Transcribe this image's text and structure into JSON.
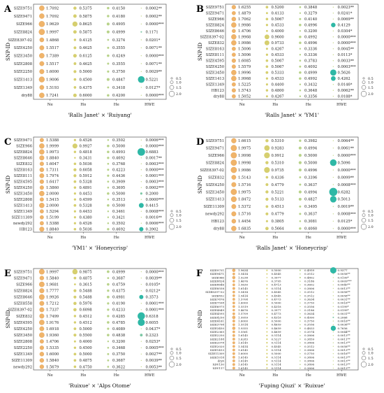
{
  "figure": {
    "ylabel": "SNP-ID",
    "x_categories": [
      "Ne",
      "Ho",
      "He",
      "HWE"
    ],
    "size_legend": [
      "0.5",
      "1.0",
      "1.5",
      "2.0"
    ]
  },
  "chart_data": [
    {
      "type": "table",
      "panel": "A",
      "title": "'Ralls Janet' × 'Ruiyang'",
      "rows": [
        {
          "id": "SIZE9751",
          "ne": "1.7092",
          "ho": "0.5375",
          "he": "0.4150",
          "hwe": "0.0002**"
        },
        {
          "id": "SIZE9471",
          "ne": "1.7092",
          "ho": "0.5875",
          "he": "0.4180",
          "hwe": "0.0002**"
        },
        {
          "id": "SIZE966",
          "ne": "1.9629",
          "ho": "0.8625",
          "he": "0.4905",
          "hwe": "0.0000***"
        },
        {
          "id": "SIZE8824",
          "ne": "1.9997",
          "ho": "0.5875",
          "he": "0.4999",
          "hwe": "0.1171"
        },
        {
          "id": "SIZE8397-02",
          "ne": "1.4868",
          "ho": "0.4125",
          "he": "0.3274",
          "hwe": "0.0201*"
        },
        {
          "id": "SIZE4250",
          "ne": "1.5517",
          "ho": "0.4625",
          "he": "0.3555",
          "hwe": "0.0071**"
        },
        {
          "id": "SIZE3450",
          "ne": "1.7389",
          "ho": "0.6125",
          "he": "0.4249",
          "hwe": "0.0000***"
        },
        {
          "id": "SIZE2808",
          "ne": "1.5517",
          "ho": "0.4625",
          "he": "0.3555",
          "hwe": "0.0071**"
        },
        {
          "id": "SIZE2250",
          "ne": "1.6000",
          "ho": "0.5000",
          "he": "0.3750",
          "hwe": "0.0029**"
        },
        {
          "id": "SIZE1413",
          "ne": "1.9006",
          "ho": "0.4500",
          "he": "0.4847",
          "hwe": "0.5221"
        },
        {
          "id": "SIZE1349",
          "ne": "1.5193",
          "ho": "0.4375",
          "he": "0.3418",
          "hwe": "0.0127*"
        },
        {
          "id": "dry88",
          "ne": "1.7241",
          "ho": "0.6000",
          "he": "0.4200",
          "hwe": "0.0000***"
        }
      ]
    },
    {
      "type": "table",
      "panel": "B",
      "title": "'Ralls Janet' × 'YM1'",
      "rows": [
        {
          "id": "SIZE9751",
          "ne": "1.6255",
          "ho": "0.5200",
          "he": "0.3848",
          "hwe": "0.0023**"
        },
        {
          "id": "SIZE9471",
          "ne": "1.4879",
          "ho": "0.4133",
          "he": "0.3279",
          "hwe": "0.0241*"
        },
        {
          "id": "SIZE966",
          "ne": "1.7062",
          "ho": "0.5067",
          "he": "0.4140",
          "hwe": "0.0069**"
        },
        {
          "id": "SIZE8824",
          "ne": "1.9986",
          "ho": "0.4533",
          "he": "0.4996",
          "hwe": "0.4129"
        },
        {
          "id": "SIZE8646",
          "ne": "1.4706",
          "ho": "0.4000",
          "he": "0.3200",
          "hwe": "0.0304*"
        },
        {
          "id": "SIZE8397-02",
          "ne": "1.9968",
          "ho": "0.9600",
          "he": "0.4992",
          "hwe": "0.0000***"
        },
        {
          "id": "SIZE832",
          "ne": "1.9986",
          "ho": "0.9733",
          "he": "0.4996",
          "hwe": "0.0000***"
        },
        {
          "id": "SIZE8163",
          "ne": "1.5006",
          "ho": "0.4267",
          "he": "0.3336",
          "hwe": "0.0045**"
        },
        {
          "id": "SIZE8111",
          "ne": "1.5006",
          "ho": "0.4533",
          "he": "0.3336",
          "hwe": "0.0113*"
        },
        {
          "id": "SIZE4595",
          "ne": "1.6085",
          "ho": "0.5067",
          "he": "0.3783",
          "hwe": "0.0033**"
        },
        {
          "id": "SIZE4250",
          "ne": "1.5579",
          "ho": "0.5067",
          "he": "0.4092",
          "hwe": "0.0003***"
        },
        {
          "id": "SIZE3450",
          "ne": "1.9996",
          "ho": "0.5333",
          "he": "0.4999",
          "hwe": "0.5626"
        },
        {
          "id": "SIZE1413",
          "ne": "1.9968",
          "ho": "0.4533",
          "he": "0.4992",
          "hwe": "0.4262"
        },
        {
          "id": "SIZE1349",
          "ne": "1.5225",
          "ho": "0.4400",
          "he": "0.3432",
          "hwe": "0.0146*"
        },
        {
          "id": "HB123",
          "ne": "1.5743",
          "ho": "0.4800",
          "he": "0.3648",
          "hwe": "0.0062**"
        },
        {
          "id": "dry88",
          "ne": "1.5052",
          "ho": "0.4267",
          "he": "0.3356",
          "hwe": "0.0188*"
        }
      ]
    },
    {
      "type": "table",
      "panel": "C",
      "title": "'YM1' × 'Honeycrisp'",
      "rows": [
        {
          "id": "SIZE9471",
          "ne": "1.5388",
          "ho": "0.4526",
          "he": "0.3502",
          "hwe": "0.0006***"
        },
        {
          "id": "SIZE966",
          "ne": "1.9999",
          "ho": "0.9927",
          "he": "0.5000",
          "hwe": "0.0000***"
        },
        {
          "id": "SIZE8824",
          "ne": "1.9973",
          "ho": "0.4818",
          "he": "0.4993",
          "hwe": "0.6883"
        },
        {
          "id": "SIZE8646",
          "ne": "1.8840",
          "ho": "0.3431",
          "he": "0.4692",
          "hwe": "0.0017**"
        },
        {
          "id": "SIZE832",
          "ne": "1.6047",
          "ho": "0.5036",
          "he": "0.3768",
          "hwe": "0.0003***"
        },
        {
          "id": "SIZE8163",
          "ne": "1.7311",
          "ho": "0.6058",
          "he": "0.4223",
          "hwe": "0.0000***"
        },
        {
          "id": "SIZE8111",
          "ne": "1.7974",
          "ho": "0.5912",
          "he": "0.4436",
          "hwe": "0.0001***"
        },
        {
          "id": "SIZE4595",
          "ne": "1.6417",
          "ho": "0.5328",
          "he": "0.3909",
          "hwe": "0.0003***"
        },
        {
          "id": "SIZE4250",
          "ne": "1.5860",
          "ho": "0.4891",
          "he": "0.3695",
          "hwe": "0.0002***"
        },
        {
          "id": "SIZE3450",
          "ne": "2.0000",
          "ho": "0.4453",
          "he": "0.5000",
          "hwe": "0.2000"
        },
        {
          "id": "SIZE2808",
          "ne": "1.5415",
          "ho": "0.4599",
          "he": "0.3513",
          "hwe": "0.0000***"
        },
        {
          "id": "SIZE1413",
          "ne": "2.0000",
          "ho": "0.5328",
          "he": "0.5000",
          "hwe": "0.4415"
        },
        {
          "id": "SIZE1349",
          "ne": "1.5294",
          "ho": "0.4453",
          "he": "0.3461",
          "hwe": "0.0008***"
        },
        {
          "id": "SIZE11309",
          "ne": "1.5199",
          "ho": "0.4380",
          "he": "0.3421",
          "hwe": "0.0016**"
        },
        {
          "id": "newdy292",
          "ne": "1.5388",
          "ho": "0.4526",
          "he": "0.3502",
          "hwe": "0.0006***"
        },
        {
          "id": "HB123",
          "ne": "1.8840",
          "ho": "0.5036",
          "he": "0.4692",
          "hwe": "0.3902"
        }
      ]
    },
    {
      "type": "table",
      "panel": "D",
      "title": "'Ralls Janet' × 'Honeycrisp'",
      "rows": [
        {
          "id": "SIZE9751",
          "ne": "1.6615",
          "ho": "0.5310",
          "he": "0.3982",
          "hwe": "0.0064**"
        },
        {
          "id": "SIZE9471",
          "ne": "1.9975",
          "ho": "0.9283",
          "he": "0.4994",
          "hwe": "0.0061**"
        },
        {
          "id": "SIZE966",
          "ne": "1.9998",
          "ho": "0.9912",
          "he": "0.5000",
          "hwe": "0.0000***"
        },
        {
          "id": "SIZE8824",
          "ne": "1.9998",
          "ho": "0.5310",
          "he": "0.5000",
          "hwe": "0.5096"
        },
        {
          "id": "SIZE8397-02",
          "ne": "1.9986",
          "ho": "0.9735",
          "he": "0.4996",
          "hwe": "0.0000***"
        },
        {
          "id": "SIZE832",
          "ne": "1.5143",
          "ho": "0.4336",
          "he": "0.3396",
          "hwe": "0.0099**"
        },
        {
          "id": "SIZE4250",
          "ne": "1.5716",
          "ho": "0.4779",
          "he": "0.3637",
          "hwe": "0.0008***"
        },
        {
          "id": "SIZE3450",
          "ne": "1.9975",
          "ho": "0.5221",
          "he": "0.4994",
          "hwe": "0.6282"
        },
        {
          "id": "SIZE1413",
          "ne": "1.8472",
          "ho": "0.5133",
          "he": "0.4827",
          "hwe": "0.5013"
        },
        {
          "id": "SIZE11309",
          "ne": "1.5372",
          "ho": "0.4513",
          "he": "0.3495",
          "hwe": "0.0019**"
        },
        {
          "id": "newdy292",
          "ne": "1.5716",
          "ho": "0.4779",
          "he": "0.3637",
          "hwe": "0.0008***"
        },
        {
          "id": "HB123",
          "ne": "1.4454",
          "ho": "0.3805",
          "he": "0.3081",
          "hwe": "0.0125*"
        },
        {
          "id": "dry88",
          "ne": "1.6835",
          "ho": "0.5664",
          "he": "0.4060",
          "hwe": "0.0000***"
        }
      ]
    },
    {
      "type": "table",
      "panel": "E",
      "title": "'Ruixue' × 'Alps Otome'",
      "rows": [
        {
          "id": "SIZE9751",
          "ne": "1.9997",
          "ho": "0.9875",
          "he": "0.4999",
          "hwe": "0.0000***"
        },
        {
          "id": "SIZE9471",
          "ne": "1.5840",
          "ho": "0.4875",
          "he": "0.3687",
          "hwe": "0.0039**"
        },
        {
          "id": "SIZE966",
          "ne": "1.9681",
          "ho": "0.3615",
          "he": "0.4759",
          "hwe": "0.0105*"
        },
        {
          "id": "SIZE8824",
          "ne": "1.7777",
          "ho": "0.5488",
          "he": "0.4375",
          "hwe": "0.0212*"
        },
        {
          "id": "SIZE8646",
          "ne": "1.9926",
          "ho": "0.5488",
          "he": "0.4981",
          "hwe": "0.3573"
        },
        {
          "id": "SIZE8558",
          "ne": "1.7212",
          "ho": "0.5976",
          "he": "0.4190",
          "hwe": "0.0001***"
        },
        {
          "id": "SIZE8397-02",
          "ne": "1.7337",
          "ho": "0.6098",
          "he": "0.4233",
          "hwe": "0.0001***"
        },
        {
          "id": "SIZE832",
          "ne": "1.7499",
          "ho": "0.4512",
          "he": "0.4285",
          "hwe": "0.6318"
        },
        {
          "id": "SIZE4595",
          "ne": "1.9176",
          "ho": "0.4512",
          "he": "0.4785",
          "hwe": "0.6055"
        },
        {
          "id": "SIZE4250",
          "ne": "1.6918",
          "ho": "0.5000",
          "he": "0.4089",
          "hwe": "0.0437*"
        },
        {
          "id": "SIZE3450",
          "ne": "1.9360",
          "ho": "0.5500",
          "he": "0.4838",
          "hwe": "0.2323"
        },
        {
          "id": "SIZE2808",
          "ne": "1.4706",
          "ho": "0.4000",
          "he": "0.3200",
          "hwe": "0.0253*"
        },
        {
          "id": "SIZE2250",
          "ne": "1.5335",
          "ho": "0.4500",
          "he": "0.3468",
          "hwe": "0.0005***"
        },
        {
          "id": "SIZE1349",
          "ne": "1.6000",
          "ho": "0.5000",
          "he": "0.3750",
          "hwe": "0.0027**"
        },
        {
          "id": "SIZE11309",
          "ne": "1.5840",
          "ho": "0.4875",
          "he": "0.3687",
          "hwe": "0.0039**"
        },
        {
          "id": "newdy292",
          "ne": "1.5679",
          "ho": "0.4750",
          "he": "0.3622",
          "hwe": "0.0053**"
        }
      ]
    },
    {
      "type": "table",
      "panel": "F",
      "title": "'Fuping Qiuzi' × 'Ruixue'",
      "rows": [
        {
          "id": "SIZE9751",
          "ne": "1.9634",
          "ho": "0.5000",
          "he": "0.4959",
          "hwe": "0.9377"
        },
        {
          "id": "SIZE9471",
          "ne": "1.5414",
          "ho": "0.4545",
          "he": "0.3512",
          "hwe": "0.0058**"
        },
        {
          "id": "SIZE966",
          "ne": "1.9238",
          "ho": "0.3977",
          "he": "0.4802",
          "hwe": "0.0199*"
        },
        {
          "id": "SIZE8824",
          "ne": "1.4676",
          "ho": "0.3795",
          "he": "0.3186",
          "hwe": "0.0009***"
        },
        {
          "id": "SIZE8646",
          "ne": "1.5630",
          "ho": "0.4713",
          "he": "0.3602",
          "hwe": "0.0040**"
        },
        {
          "id": "SIZE8558",
          "ne": "1.6145",
          "ho": "0.5114",
          "he": "0.3806",
          "hwe": "0.0013**"
        },
        {
          "id": "SIZE8397-02",
          "ne": "1.5414",
          "ho": "0.4545",
          "he": "0.3512",
          "hwe": "0.0058**"
        },
        {
          "id": "SIZE832",
          "ne": "1.5414",
          "ho": "0.4545",
          "he": "0.3512",
          "hwe": "0.0058**"
        },
        {
          "id": "SIZE7876",
          "ne": "1.5708",
          "ho": "0.4773",
          "he": "0.3634",
          "hwe": "0.0031**"
        },
        {
          "id": "SIZE7598",
          "ne": "1.6000",
          "ho": "0.5000",
          "he": "0.3750",
          "hwe": "0.0016**"
        },
        {
          "id": "SIZE6975",
          "ne": "1.5519",
          "ho": "0.4318",
          "he": "0.3556",
          "hwe": "0.0199*"
        },
        {
          "id": "SIZE4849",
          "ne": "1.4676",
          "ho": "0.3977",
          "he": "0.3186",
          "hwe": "0.0199*"
        },
        {
          "id": "SIZE4595",
          "ne": "1.5709",
          "ho": "0.4773",
          "he": "0.3634",
          "hwe": "0.0031**"
        },
        {
          "id": "SIZE4250",
          "ne": "1.9959",
          "ho": "0.4318",
          "he": "0.4990",
          "hwe": "0.2068"
        },
        {
          "id": "SIZE4161",
          "ne": "1.6000",
          "ho": "0.5000",
          "he": "0.3750",
          "hwe": "0.0016**"
        },
        {
          "id": "SIZE3798",
          "ne": "1.5514",
          "ho": "0.4659",
          "he": "0.3556",
          "hwe": "0.0038**"
        },
        {
          "id": "SIZE3450",
          "ne": "1.9355",
          "ho": "0.4659",
          "he": "0.4833",
          "hwe": "0.7656"
        },
        {
          "id": "SIZE2365",
          "ne": "1.5561",
          "ho": "0.4659",
          "he": "0.3574",
          "hwe": "0.0044**"
        },
        {
          "id": "SIZE2250",
          "ne": "1.6145",
          "ho": "0.5114",
          "he": "0.3806",
          "hwe": "0.0013**"
        },
        {
          "id": "SIZE2188",
          "ne": "1.6283",
          "ho": "0.5227",
          "he": "0.3859",
          "hwe": "0.0011**"
        },
        {
          "id": "SIZE2078",
          "ne": "1.6145",
          "ho": "0.5114",
          "he": "0.3806",
          "hwe": "0.0013**"
        },
        {
          "id": "SIZE2020",
          "ne": "1.5414",
          "ho": "0.4545",
          "he": "0.3512",
          "hwe": "0.0058**"
        },
        {
          "id": "SIZE1413",
          "ne": "1.6145",
          "ho": "0.5114",
          "he": "0.3806",
          "hwe": "0.0013**"
        },
        {
          "id": "SIZE11309",
          "ne": "1.6000",
          "ho": "0.5000",
          "he": "0.3750",
          "hwe": "0.0016**"
        },
        {
          "id": "SIZE1018",
          "ne": "1.6145",
          "ho": "0.5114",
          "he": "0.3806",
          "hwe": "0.0013**"
        },
        {
          "id": "dry6",
          "ne": "1.6145",
          "ho": "0.5114",
          "he": "0.3806",
          "hwe": "0.0013**"
        },
        {
          "id": "XDY130",
          "ne": "1.6145",
          "ho": "0.5114",
          "he": "0.3806",
          "hwe": "0.0013**"
        },
        {
          "id": "XDY117",
          "ne": "1.6145",
          "ho": "0.5114",
          "he": "0.3806",
          "hwe": "0.0013**"
        }
      ]
    }
  ]
}
